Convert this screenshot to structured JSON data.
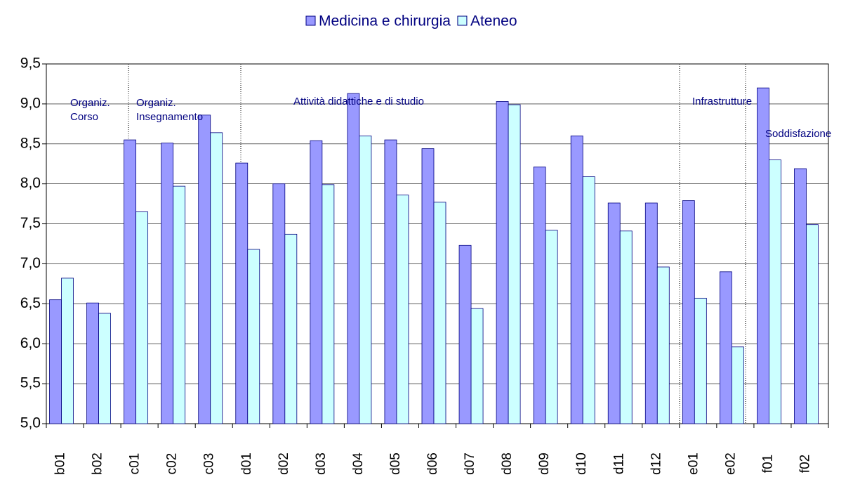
{
  "chart_data": {
    "type": "bar",
    "categories": [
      "b01",
      "b02",
      "c01",
      "c02",
      "c03",
      "d01",
      "d02",
      "d03",
      "d04",
      "d05",
      "d06",
      "d07",
      "d08",
      "d09",
      "d10",
      "d11",
      "d12",
      "e01",
      "e02",
      "f01",
      "f02"
    ],
    "series": [
      {
        "name": "Medicina e chirurgia",
        "color": "#9999ff",
        "values": [
          6.55,
          6.51,
          8.55,
          8.51,
          8.86,
          8.26,
          8.0,
          8.54,
          9.13,
          8.55,
          8.44,
          7.23,
          9.03,
          8.21,
          8.6,
          7.76,
          7.76,
          7.79,
          6.9,
          9.2,
          8.19
        ]
      },
      {
        "name": "Ateneo",
        "color": "#ccffff",
        "values": [
          6.82,
          6.38,
          7.65,
          7.97,
          8.64,
          7.18,
          7.37,
          7.99,
          8.6,
          7.86,
          7.77,
          6.44,
          8.99,
          7.42,
          8.09,
          7.41,
          6.96,
          6.57,
          5.96,
          8.3,
          7.49
        ]
      }
    ],
    "ylim": [
      5.0,
      9.5
    ],
    "yticks": [
      {
        "value": 5.0,
        "label": "5,0"
      },
      {
        "value": 5.5,
        "label": "5,5"
      },
      {
        "value": 6.0,
        "label": "6,0"
      },
      {
        "value": 6.5,
        "label": "6,5"
      },
      {
        "value": 7.0,
        "label": "7,0"
      },
      {
        "value": 7.5,
        "label": "7,5"
      },
      {
        "value": 8.0,
        "label": "8,0"
      },
      {
        "value": 8.5,
        "label": "8,5"
      },
      {
        "value": 9.0,
        "label": "9,0"
      },
      {
        "value": 9.5,
        "label": "9,5"
      }
    ],
    "grid": true,
    "legend": "top",
    "annotations": [
      {
        "lines": [
          "Organiz.",
          "Corso"
        ]
      },
      {
        "lines": [
          "Organiz.",
          "Insegnamento"
        ]
      },
      {
        "lines": [
          "Attività didattiche e di studio"
        ]
      },
      {
        "lines": [
          "Infrastrutture"
        ]
      },
      {
        "lines": [
          "Soddisfazione"
        ]
      }
    ]
  }
}
